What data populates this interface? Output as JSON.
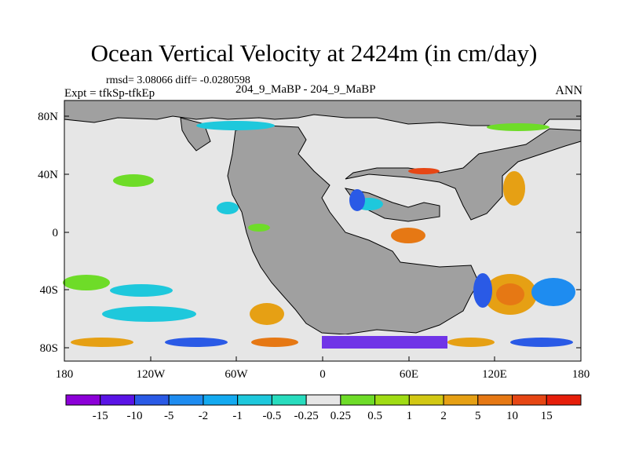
{
  "title": "Ocean Vertical Velocity at 2424m (in cm/day)",
  "stats": "rmsd= 3.08066 diff= -0.0280598",
  "experiment": "Expt = tfkSp-tfkEp",
  "center_label": "204_9_MaBP - 204_9_MaBP",
  "season": "ANN",
  "map": {
    "lat_ticks": [
      "80N",
      "40N",
      "0",
      "40S",
      "80S"
    ],
    "lon_ticks": [
      "180",
      "120W",
      "60W",
      "0",
      "60E",
      "120E",
      "180"
    ],
    "land_color": "#a0a0a0",
    "background_color": "#e6e6e6"
  },
  "colorbar": {
    "labels": [
      "-15",
      "-10",
      "-5",
      "-2",
      "-1",
      "-0.5",
      "-0.25",
      "0.25",
      "0.5",
      "1",
      "2",
      "5",
      "10",
      "15"
    ],
    "colors": [
      "#8c00d8",
      "#5a14e6",
      "#2a5ae6",
      "#1e8cf0",
      "#14aaf0",
      "#1ec8dc",
      "#28dcbe",
      "#e6e6e6",
      "#6edc28",
      "#a0dc14",
      "#d2c814",
      "#e6a014",
      "#e67814",
      "#e64614",
      "#e61e0a"
    ]
  }
}
